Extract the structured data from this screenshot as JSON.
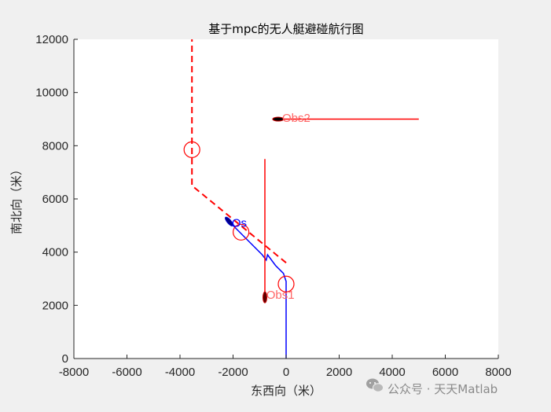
{
  "chart_data": {
    "type": "line",
    "title": "基于mpc的无人艇避碰航行图",
    "xlabel": "东西向（米）",
    "ylabel": "南北向（米）",
    "xlim": [
      -8000,
      8000
    ],
    "ylim": [
      0,
      12000
    ],
    "xticks": [
      -8000,
      -6000,
      -4000,
      -2000,
      0,
      2000,
      4000,
      6000,
      8000
    ],
    "yticks": [
      0,
      2000,
      4000,
      6000,
      8000,
      10000,
      12000
    ],
    "xtick_labels": [
      "-8000",
      "-6000",
      "-4000",
      "-2000",
      "0",
      "2000",
      "4000",
      "6000",
      "8000"
    ],
    "ytick_labels": [
      "0",
      "2000",
      "4000",
      "6000",
      "8000",
      "10000",
      "12000"
    ],
    "grid": false,
    "series": [
      {
        "style": "dashed",
        "color": "#ff0000",
        "x": [
          0,
          -3550,
          -3550
        ],
        "y": [
          3600,
          6500,
          12000
        ]
      },
      {
        "style": "solid",
        "color": "#0000ff",
        "x": [
          0,
          0,
          -100,
          -400,
          -700,
          -750,
          -900,
          -1300,
          -1800,
          -2300
        ],
        "y": [
          0,
          2900,
          3200,
          3500,
          3900,
          3700,
          3900,
          4300,
          4800,
          5300
        ]
      },
      {
        "style": "solid",
        "color": "#ff0000",
        "x": [
          -800,
          -800
        ],
        "y": [
          2200,
          7500
        ]
      },
      {
        "style": "solid",
        "color": "#ff0000",
        "x": [
          -400,
          5000
        ],
        "y": [
          9000,
          9000
        ]
      }
    ],
    "circles": [
      {
        "cx": -3550,
        "cy": 7850,
        "color": "#ff0000"
      },
      {
        "cx": -1700,
        "cy": 4750,
        "color": "#ff0000"
      },
      {
        "cx": 0,
        "cy": 2800,
        "color": "#ff0000"
      }
    ],
    "vessels": [
      {
        "x": -800,
        "y": 2300,
        "heading": "vertical"
      },
      {
        "x": -300,
        "y": 9000,
        "heading": "horizontal"
      },
      {
        "x": -2150,
        "y": 5150,
        "heading": "diagonal"
      }
    ],
    "annotations": [
      {
        "text": "Obs1",
        "x": -750,
        "y": 2250,
        "color": "#ff6666"
      },
      {
        "text": "Obs2",
        "x": -150,
        "y": 8900,
        "color": "#ff6666"
      },
      {
        "text": "Os",
        "x": -2050,
        "y": 4950,
        "color": "#0000ff"
      }
    ]
  },
  "watermark": {
    "icon": "wechat-icon",
    "text": "公众号 · 天天Matlab"
  }
}
